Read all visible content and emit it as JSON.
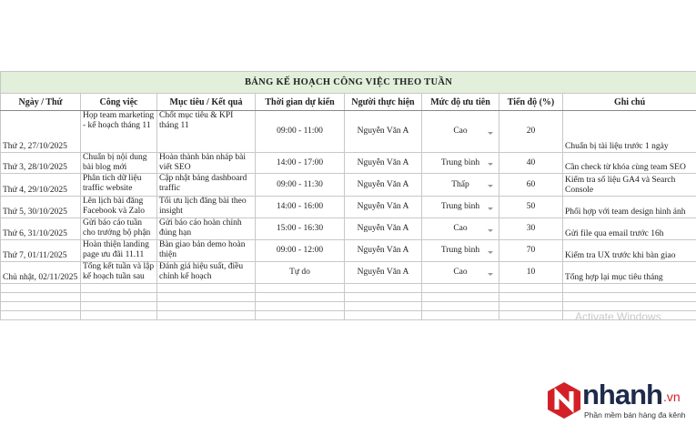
{
  "table": {
    "title": "BẢNG KẾ HOẠCH CÔNG VIỆC THEO TUẦN",
    "headers": [
      "Ngày / Thứ",
      "Công việc",
      "Mục tiêu / Kết quả",
      "Thời gian dự kiến",
      "Người thực hiện",
      "Mức độ ưu tiên",
      "Tiến độ (%)",
      "Ghi chú"
    ],
    "rows": [
      [
        "Thứ 2, 27/10/2025",
        "Họp team marketing - kế hoạch tháng 11",
        "Chốt mục tiêu & KPI tháng 11",
        "09:00 - 11:00",
        "Nguyễn Văn A",
        "Cao",
        20,
        "Chuẩn bị tài liệu trước 1 ngày"
      ],
      [
        "Thứ 3, 28/10/2025",
        "Chuẩn bị nội dung bài blog mới",
        "Hoàn thành bản nháp bài viết SEO",
        "14:00 - 17:00",
        "Nguyễn Văn A",
        "Trung bình",
        40,
        "Cần check từ khóa cùng team SEO"
      ],
      [
        "Thứ 4, 29/10/2025",
        "Phân tích dữ liệu traffic website",
        "Cập nhật bảng dashboard traffic",
        "09:00 - 11:30",
        "Nguyễn Văn A",
        "Thấp",
        60,
        "Kiểm tra số liệu GA4 và Search Console"
      ],
      [
        "Thứ 5, 30/10/2025",
        "Lên lịch bài đăng Facebook và Zalo",
        "Tối ưu lịch đăng bài theo insight",
        "14:00 - 16:00",
        "Nguyễn Văn A",
        "Trung bình",
        50,
        "Phối hợp với team design hình ảnh"
      ],
      [
        "Thứ 6, 31/10/2025",
        "Gửi báo cáo tuần cho trưởng bộ phận",
        "Gửi báo cáo hoàn chỉnh đúng hạn",
        "15:00 - 16:30",
        "Nguyễn Văn A",
        "Cao",
        30,
        "Gửi file qua email trước 16h"
      ],
      [
        "Thứ 7, 01/11/2025",
        "Hoàn thiện landing page ưu đãi 11.11",
        "Bàn giao bản demo hoàn thiện",
        "09:00 - 12:00",
        "Nguyễn Văn A",
        "Trung bình",
        70,
        "Kiểm tra UX trước khi bàn giao"
      ],
      [
        "Chủ nhật, 02/11/2025",
        "Tổng kết tuần và lập kế hoạch tuần sau",
        "Đánh giá hiệu suất, điều chỉnh kế hoạch",
        "Tự do",
        "Nguyễn Văn A",
        "Cao",
        10,
        "Tổng hợp lại mục tiêu tháng"
      ]
    ]
  },
  "watermark": "Activate Windows",
  "logo": {
    "brand": "nhanh",
    "domain": ".vn",
    "tagline": "Phần mềm bán hàng đa kênh"
  }
}
